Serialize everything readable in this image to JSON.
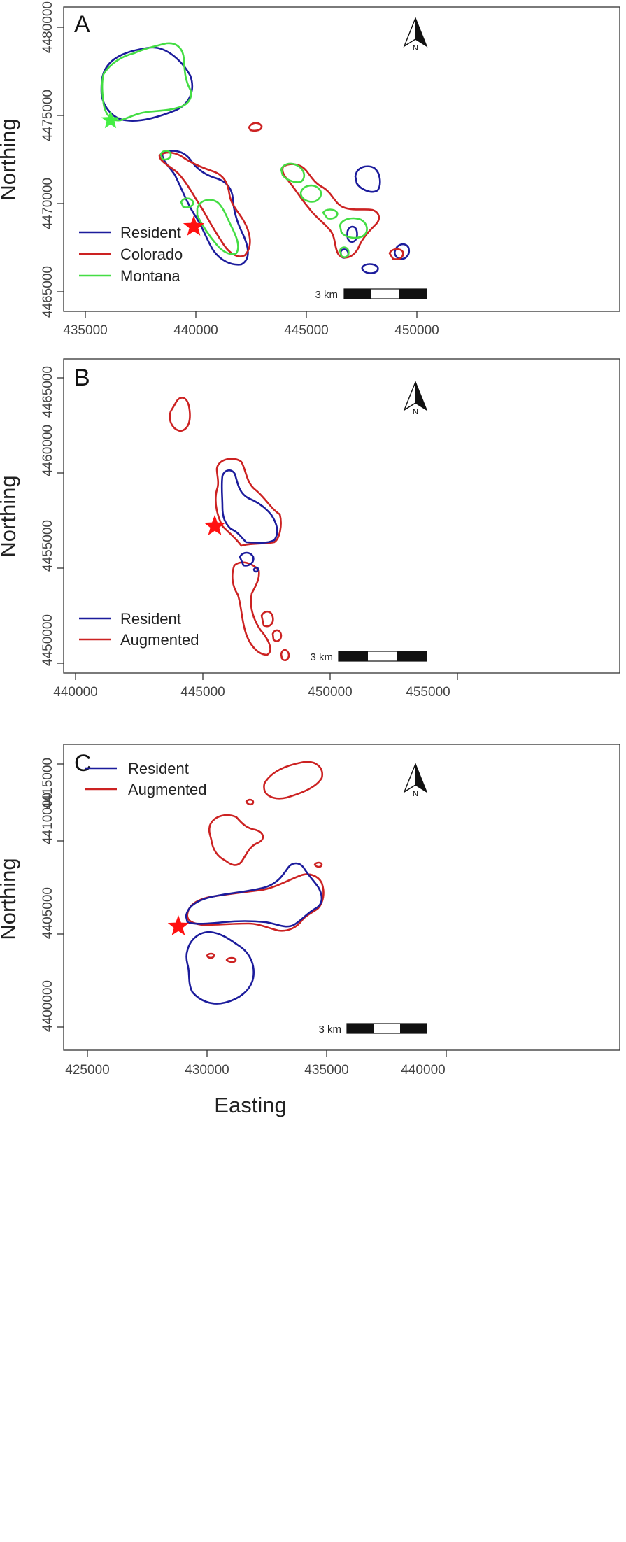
{
  "colors": {
    "resident": "#1c1c9c",
    "colorado": "#cc2222",
    "augmented": "#cc2222",
    "montana": "#44dd44",
    "star_red": "#ff1111",
    "star_green": "#44ee44"
  },
  "icons": {
    "north_arrow": "north-arrow-icon",
    "star": "star-icon"
  },
  "x_axis_label": "Easting",
  "panels": [
    {
      "letter": "A",
      "y_axis_label": "Northing",
      "x_ticks": [
        "435000",
        "440000",
        "445000",
        "450000"
      ],
      "y_ticks": [
        "4465000",
        "4470000",
        "4475000",
        "4480000"
      ],
      "legend": [
        "Resident",
        "Colorado",
        "Montana"
      ],
      "scale_label": "3 km",
      "north_label": "N"
    },
    {
      "letter": "B",
      "y_axis_label": "Northing",
      "x_ticks": [
        "440000",
        "445000",
        "450000",
        "455000"
      ],
      "y_ticks": [
        "4450000",
        "4455000",
        "4460000",
        "4465000"
      ],
      "legend": [
        "Resident",
        "Augmented"
      ],
      "scale_label": "3 km",
      "north_label": "N"
    },
    {
      "letter": "C",
      "y_axis_label": "Northing",
      "x_ticks": [
        "425000",
        "430000",
        "435000",
        "440000"
      ],
      "y_ticks": [
        "4400000",
        "4405000",
        "4410000",
        "4415000"
      ],
      "legend": [
        "Resident",
        "Augmented"
      ],
      "scale_label": "3 km",
      "north_label": "N"
    }
  ]
}
